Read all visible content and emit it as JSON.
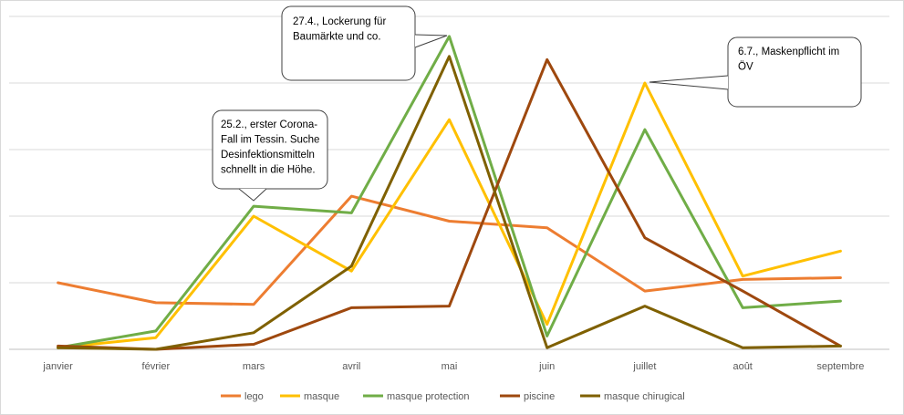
{
  "chart_data": {
    "type": "line",
    "title": "",
    "xlabel": "",
    "ylabel": "",
    "ylim": [
      0,
      100
    ],
    "grid": "horizontal",
    "legend": "bottom",
    "categories": [
      "janvier",
      "février",
      "mars",
      "avril",
      "mai",
      "juin",
      "juillet",
      "août",
      "septembre"
    ],
    "series": [
      {
        "name": "lego",
        "color": "#ED7D31",
        "values": [
          20,
          14,
          13.5,
          46,
          38.5,
          36.5,
          17.5,
          21,
          21.5
        ]
      },
      {
        "name": "masque",
        "color": "#FFC000",
        "values": [
          0.5,
          3.5,
          40,
          23.5,
          69,
          7.5,
          80,
          22,
          29.5
        ]
      },
      {
        "name": "masque protection",
        "color": "#70AD47",
        "values": [
          0.5,
          5.5,
          43,
          41,
          94,
          4,
          66,
          12.5,
          14.5
        ]
      },
      {
        "name": "piscine",
        "color": "#9E480E",
        "values": [
          1,
          0,
          1.5,
          12.5,
          13,
          87,
          33.5,
          17.5,
          1
        ]
      },
      {
        "name": "masque chirugical",
        "color": "#7F6000",
        "values": [
          0.5,
          0,
          5,
          25,
          88,
          0.5,
          13,
          0.5,
          1
        ]
      }
    ],
    "annotations": [
      {
        "lines": [
          "25.2., erster Corona-",
          "Fall im Tessin. Suche",
          "Desinfektionsmitteln",
          "schnellt in die Höhe."
        ]
      },
      {
        "lines": [
          "27.4., Lockerung für",
          "Baumärkte und co."
        ]
      },
      {
        "lines": [
          "6.7., Maskenpflicht im",
          "ÖV"
        ]
      }
    ]
  }
}
